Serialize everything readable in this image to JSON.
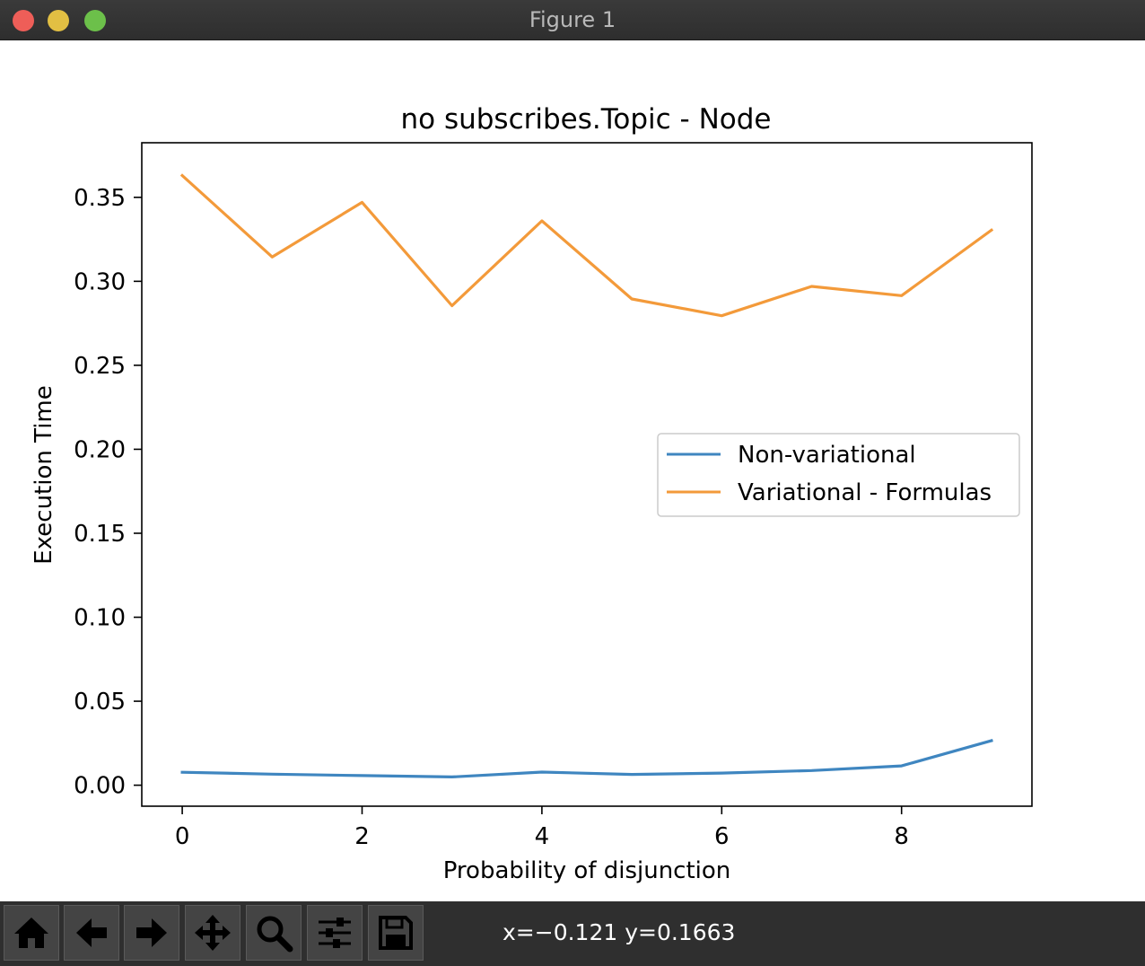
{
  "window": {
    "title": "Figure 1"
  },
  "toolbar": {
    "buttons": [
      {
        "name": "home-icon"
      },
      {
        "name": "back-arrow-icon"
      },
      {
        "name": "forward-arrow-icon"
      },
      {
        "name": "pan-move-icon"
      },
      {
        "name": "zoom-magnifier-icon"
      },
      {
        "name": "configure-subplots-icon"
      },
      {
        "name": "save-floppy-icon"
      }
    ],
    "coords": "x=−0.121 y=0.1663"
  },
  "chart_data": {
    "type": "line",
    "title": "no subscribes.Topic - Node",
    "xlabel": "Probability of disjunction",
    "ylabel": "Execution Time",
    "x": [
      0,
      1,
      2,
      3,
      4,
      5,
      6,
      7,
      8,
      9
    ],
    "xlim": [
      -0.45,
      9.45
    ],
    "ylim": [
      -0.0125,
      0.3825
    ],
    "xticks": [
      0,
      2,
      4,
      6,
      8
    ],
    "yticks": [
      0.0,
      0.05,
      0.1,
      0.15,
      0.2,
      0.25,
      0.3,
      0.35
    ],
    "xtick_labels": [
      "0",
      "2",
      "4",
      "6",
      "8"
    ],
    "ytick_labels": [
      "0.00",
      "0.05",
      "0.10",
      "0.15",
      "0.20",
      "0.25",
      "0.30",
      "0.35"
    ],
    "grid": false,
    "legend_position": "center-right",
    "series": [
      {
        "name": "Non-variational",
        "color": "#3f86c0",
        "values": [
          0.0077,
          0.0066,
          0.0057,
          0.0049,
          0.0078,
          0.0064,
          0.0072,
          0.0087,
          0.0115,
          0.0265
        ]
      },
      {
        "name": "Variational - Formulas",
        "color": "#f39a3a",
        "values": [
          0.363,
          0.3145,
          0.347,
          0.2855,
          0.336,
          0.2895,
          0.2795,
          0.297,
          0.2915,
          0.3305
        ]
      }
    ]
  }
}
